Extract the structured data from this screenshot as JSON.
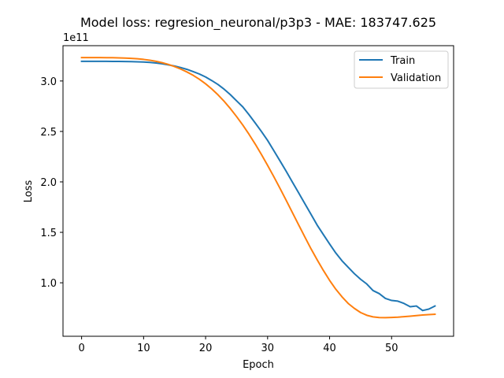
{
  "chart_data": {
    "type": "line",
    "title": "Model loss: regresion_neuronal/p3p3 - MAE: 183747.625",
    "xlabel": "Epoch",
    "ylabel": "Loss",
    "y_offset_label": "1e11",
    "xlim": [
      -3,
      60
    ],
    "ylim": [
      0.47,
      3.35
    ],
    "x_ticks": [
      0,
      10,
      20,
      30,
      40,
      50
    ],
    "y_ticks": [
      1.0,
      1.5,
      2.0,
      2.5,
      3.0
    ],
    "y_tick_labels": [
      "1.0",
      "1.5",
      "2.0",
      "2.5",
      "3.0"
    ],
    "legend_position": "top-right",
    "series": [
      {
        "name": "Train",
        "color": "#1f77b4",
        "x": [
          0,
          1,
          2,
          3,
          4,
          5,
          6,
          7,
          8,
          9,
          10,
          11,
          12,
          13,
          14,
          15,
          16,
          17,
          18,
          19,
          20,
          21,
          22,
          23,
          24,
          25,
          26,
          27,
          28,
          29,
          30,
          31,
          32,
          33,
          34,
          35,
          36,
          37,
          38,
          39,
          40,
          41,
          42,
          43,
          44,
          45,
          46,
          47,
          48,
          49,
          50,
          51,
          52,
          53,
          54,
          55,
          56,
          57
        ],
        "values": [
          3.195,
          3.195,
          3.195,
          3.195,
          3.195,
          3.194,
          3.194,
          3.193,
          3.192,
          3.19,
          3.188,
          3.184,
          3.178,
          3.17,
          3.16,
          3.148,
          3.133,
          3.115,
          3.093,
          3.069,
          3.04,
          3.004,
          2.965,
          2.918,
          2.864,
          2.803,
          2.743,
          2.666,
          2.584,
          2.5,
          2.411,
          2.31,
          2.208,
          2.105,
          1.998,
          1.892,
          1.785,
          1.679,
          1.571,
          1.477,
          1.385,
          1.295,
          1.218,
          1.153,
          1.09,
          1.035,
          0.988,
          0.923,
          0.893,
          0.845,
          0.825,
          0.818,
          0.795,
          0.763,
          0.77,
          0.725,
          0.739,
          0.77
        ]
      },
      {
        "name": "Validation",
        "color": "#ff7f0e",
        "x": [
          0,
          1,
          2,
          3,
          4,
          5,
          6,
          7,
          8,
          9,
          10,
          11,
          12,
          13,
          14,
          15,
          16,
          17,
          18,
          19,
          20,
          21,
          22,
          23,
          24,
          25,
          26,
          27,
          28,
          29,
          30,
          31,
          32,
          33,
          34,
          35,
          36,
          37,
          38,
          39,
          40,
          41,
          42,
          43,
          44,
          45,
          46,
          47,
          48,
          49,
          50,
          51,
          52,
          53,
          54,
          55,
          56,
          57
        ],
        "values": [
          3.232,
          3.232,
          3.232,
          3.232,
          3.231,
          3.231,
          3.229,
          3.227,
          3.224,
          3.22,
          3.214,
          3.206,
          3.195,
          3.181,
          3.164,
          3.143,
          3.118,
          3.089,
          3.056,
          3.017,
          2.972,
          2.921,
          2.863,
          2.798,
          2.726,
          2.647,
          2.563,
          2.472,
          2.375,
          2.272,
          2.164,
          2.052,
          1.936,
          1.817,
          1.696,
          1.575,
          1.455,
          1.337,
          1.227,
          1.122,
          1.024,
          0.936,
          0.861,
          0.795,
          0.746,
          0.705,
          0.678,
          0.662,
          0.655,
          0.654,
          0.656,
          0.659,
          0.664,
          0.669,
          0.675,
          0.681,
          0.685,
          0.688
        ]
      }
    ]
  }
}
